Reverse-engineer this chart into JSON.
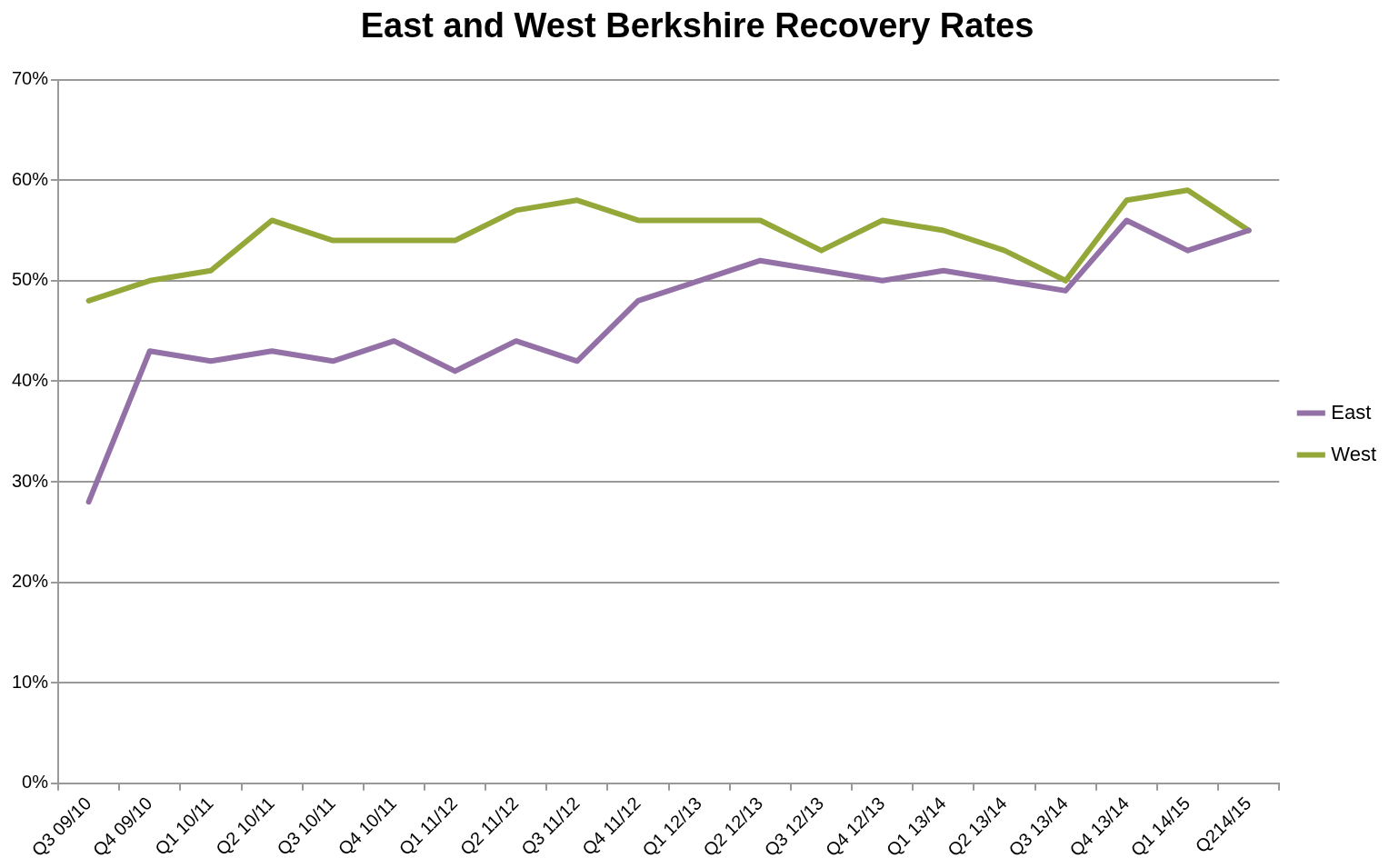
{
  "chart_data": {
    "type": "line",
    "title": "East and West Berkshire Recovery Rates",
    "categories": [
      "Q3 09/10",
      "Q4 09/10",
      "Q1 10/11",
      "Q2 10/11",
      "Q3 10/11",
      "Q4 10/11",
      "Q1 11/12",
      "Q2 11/12",
      "Q3 11/12",
      "Q4 11/12",
      "Q1 12/13",
      "Q2 12/13",
      "Q3 12/13",
      "Q4 12/13",
      "Q1 13/14",
      "Q2 13/14",
      "Q3 13/14",
      "Q4 13/14",
      "Q1 14/15",
      "Q214/15"
    ],
    "series": [
      {
        "name": "East",
        "color": "#9370a6",
        "values": [
          28,
          43,
          42,
          43,
          42,
          44,
          41,
          44,
          42,
          48,
          50,
          52,
          51,
          50,
          51,
          50,
          49,
          56,
          53,
          55
        ]
      },
      {
        "name": "West",
        "color": "#94a83a",
        "values": [
          48,
          50,
          51,
          56,
          54,
          54,
          54,
          57,
          58,
          56,
          56,
          56,
          53,
          56,
          55,
          53,
          50,
          58,
          59,
          55
        ]
      }
    ],
    "ylim": [
      0,
      70
    ],
    "yticks": [
      {
        "value": 0,
        "label": "0%"
      },
      {
        "value": 10,
        "label": "10%"
      },
      {
        "value": 20,
        "label": "20%"
      },
      {
        "value": 30,
        "label": "30%"
      },
      {
        "value": 40,
        "label": "40%"
      },
      {
        "value": 50,
        "label": "50%"
      },
      {
        "value": 60,
        "label": "60%"
      },
      {
        "value": 70,
        "label": "70%"
      }
    ],
    "grid": "y",
    "legend": "right",
    "marker": "none",
    "line_style": "solid"
  }
}
